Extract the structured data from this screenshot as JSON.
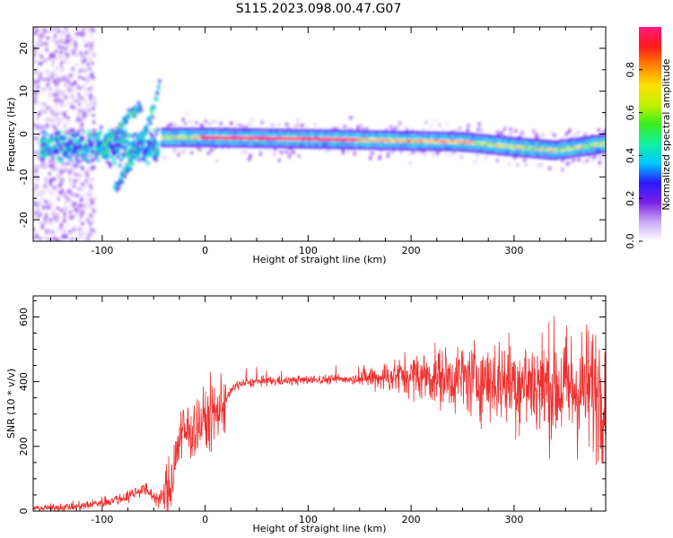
{
  "title": "S115.2023.098.00.47.G07",
  "chart_data": [
    {
      "type": "heatmap",
      "title": "S115.2023.098.00.47.G07",
      "xlabel": "Height of straight line (km)",
      "ylabel": "Frequency (Hz)",
      "xlim": [
        -167,
        389
      ],
      "ylim": [
        -25,
        25
      ],
      "x_ticks": [
        -100,
        0,
        100,
        200,
        300
      ],
      "y_ticks": [
        -20,
        -10,
        0,
        10,
        20
      ],
      "colorbar": {
        "label": "Normalized spectral amplitude",
        "range": [
          0,
          1
        ],
        "ticks": [
          "0.0",
          "0.2",
          "0.4",
          "0.6",
          "0.8"
        ],
        "colors": [
          "#ffffff",
          "#c9a8f5",
          "#7a1fe6",
          "#2a18ff",
          "#00c8ff",
          "#12f0a0",
          "#38ee20",
          "#c4f000",
          "#ffe000",
          "#ff8400",
          "#ff1a1a",
          "#ff1a80"
        ]
      },
      "ridges": [
        {
          "x": [
            -100,
            -88,
            -78,
            -70,
            -62
          ],
          "y": [
            -3,
            0,
            3,
            5,
            6
          ]
        },
        {
          "x": [
            -88,
            -76,
            -66,
            -58,
            -50,
            -44
          ],
          "y": [
            -13,
            -8,
            -3,
            1,
            6,
            12
          ]
        },
        {
          "x": [
            -40,
            0,
            60,
            120,
            200,
            250,
            300,
            340,
            389
          ],
          "y": [
            -0.8,
            -0.8,
            -1.0,
            -1.2,
            -1.6,
            -1.8,
            -3.0,
            -3.8,
            -2.2
          ]
        }
      ]
    },
    {
      "type": "line",
      "xlabel": "Height of straight line (km)",
      "ylabel": "SNR (10 * v/v)",
      "xlim": [
        -167,
        389
      ],
      "ylim": [
        0,
        665
      ],
      "x_ticks": [
        -100,
        0,
        100,
        200,
        300
      ],
      "y_ticks": [
        0,
        200,
        400,
        600
      ],
      "series_color": "#ee2f2f",
      "envelope": {
        "x": [
          -167,
          -120,
          -80,
          -60,
          -45,
          -35,
          -25,
          -10,
          10,
          30,
          50,
          100,
          150,
          200,
          250,
          300,
          350,
          389
        ],
        "y": [
          8,
          15,
          40,
          70,
          35,
          60,
          230,
          260,
          300,
          390,
          400,
          405,
          410,
          420,
          410,
          400,
          380,
          370
        ]
      }
    }
  ]
}
